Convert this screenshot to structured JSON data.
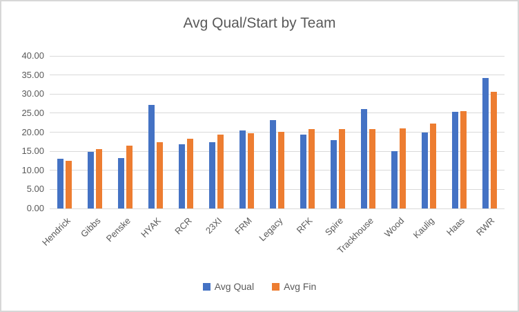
{
  "window": {
    "background": "#FFFFFF",
    "frame_border_color": "#D7D7D7"
  },
  "chart_data": {
    "type": "bar",
    "title": "Avg Qual/Start by Team",
    "categories": [
      "Hendrick",
      "Gibbs",
      "Penske",
      "HYAK",
      "RCR",
      "23XI",
      "FRM",
      "Legacy",
      "RFK",
      "Spire",
      "Trackhouse",
      "Wood",
      "Kaulig",
      "Haas",
      "RWR"
    ],
    "series": [
      {
        "name": "Avg Qual",
        "color": "#4472C4",
        "values": [
          13.0,
          14.9,
          13.2,
          27.2,
          16.9,
          17.4,
          20.4,
          23.1,
          19.3,
          18.0,
          26.1,
          15.0,
          20.0,
          25.4,
          34.3
        ]
      },
      {
        "name": "Avg Fin",
        "color": "#ED7D31",
        "values": [
          12.5,
          15.5,
          16.4,
          17.3,
          18.2,
          19.4,
          19.8,
          20.1,
          20.8,
          20.9,
          20.8,
          21.0,
          22.2,
          25.6,
          30.6
        ]
      }
    ],
    "xlabel": "",
    "ylabel": "",
    "ylim": [
      0,
      40
    ],
    "ytick_step": 5,
    "ytick_labels": [
      "40.00",
      "35.00",
      "30.00",
      "25.00",
      "20.00",
      "15.00",
      "10.00",
      "5.00",
      "0.00"
    ],
    "grid": true,
    "gridline_color": "#D9D9D9",
    "text_color": "#595959",
    "legend_position": "bottom",
    "x_label_rotation_deg": -45
  }
}
